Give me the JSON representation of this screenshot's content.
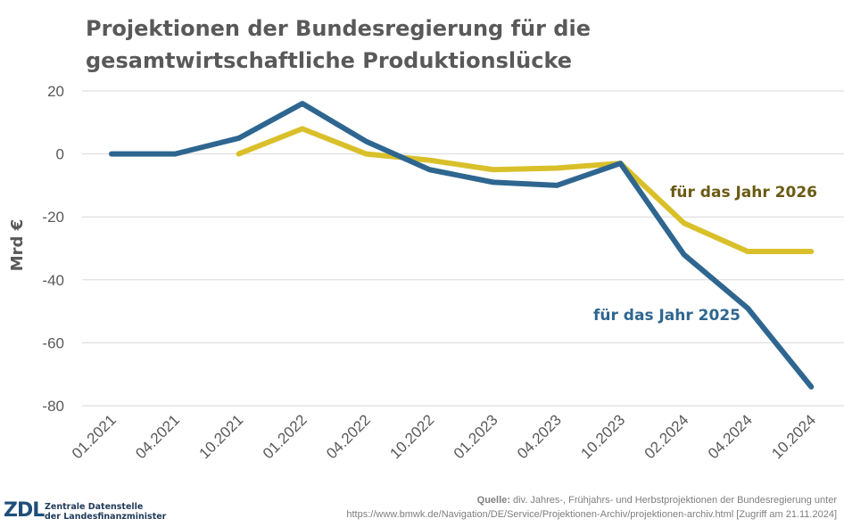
{
  "chart_data": {
    "type": "line",
    "title": "Projektionen der Bundesregierung für die gesamtwirtschaftliche Produktionslücke",
    "ylabel": "Mrd €",
    "xlabel": "",
    "categories": [
      "01.2021",
      "04.2021",
      "10.2021",
      "01.2022",
      "04.2022",
      "10.2022",
      "01.2023",
      "04.2023",
      "10.2023",
      "02.2024",
      "04.2024",
      "10.2024"
    ],
    "ylim": [
      -80,
      20
    ],
    "yticks": [
      20,
      0,
      -20,
      -40,
      -60,
      -80
    ],
    "grid": true,
    "series": [
      {
        "name": "für das Jahr 2025",
        "color": "#2e6690",
        "values": [
          0,
          0,
          5,
          16,
          4,
          -5,
          -9,
          -10,
          -3,
          -32,
          -49,
          -74
        ]
      },
      {
        "name": "für das Jahr 2026",
        "color": "#d9c02a",
        "values": [
          null,
          null,
          0,
          8,
          0,
          -2,
          -5,
          -4.5,
          -3,
          -22,
          -31,
          -31
        ]
      }
    ]
  },
  "colors": {
    "label_2025": "#2e6690",
    "label_2026": "#6b5a14",
    "axis_text": "#595959",
    "grid": "#d9d9d9"
  },
  "footer": {
    "logo_mark": "ZDL",
    "logo_line1": "Zentrale Datenstelle",
    "logo_line2": "der Landesfinanzminister",
    "source_label": "Quelle:",
    "source_text": "div. Jahres-, Frühjahrs- und Herbstprojektionen der Bundesregierung unter",
    "source_url": "https://www.bmwk.de/Navigation/DE/Service/Projektionen-Archiv/projektionen-archiv.html [Zugriff am 21.11.2024]"
  }
}
